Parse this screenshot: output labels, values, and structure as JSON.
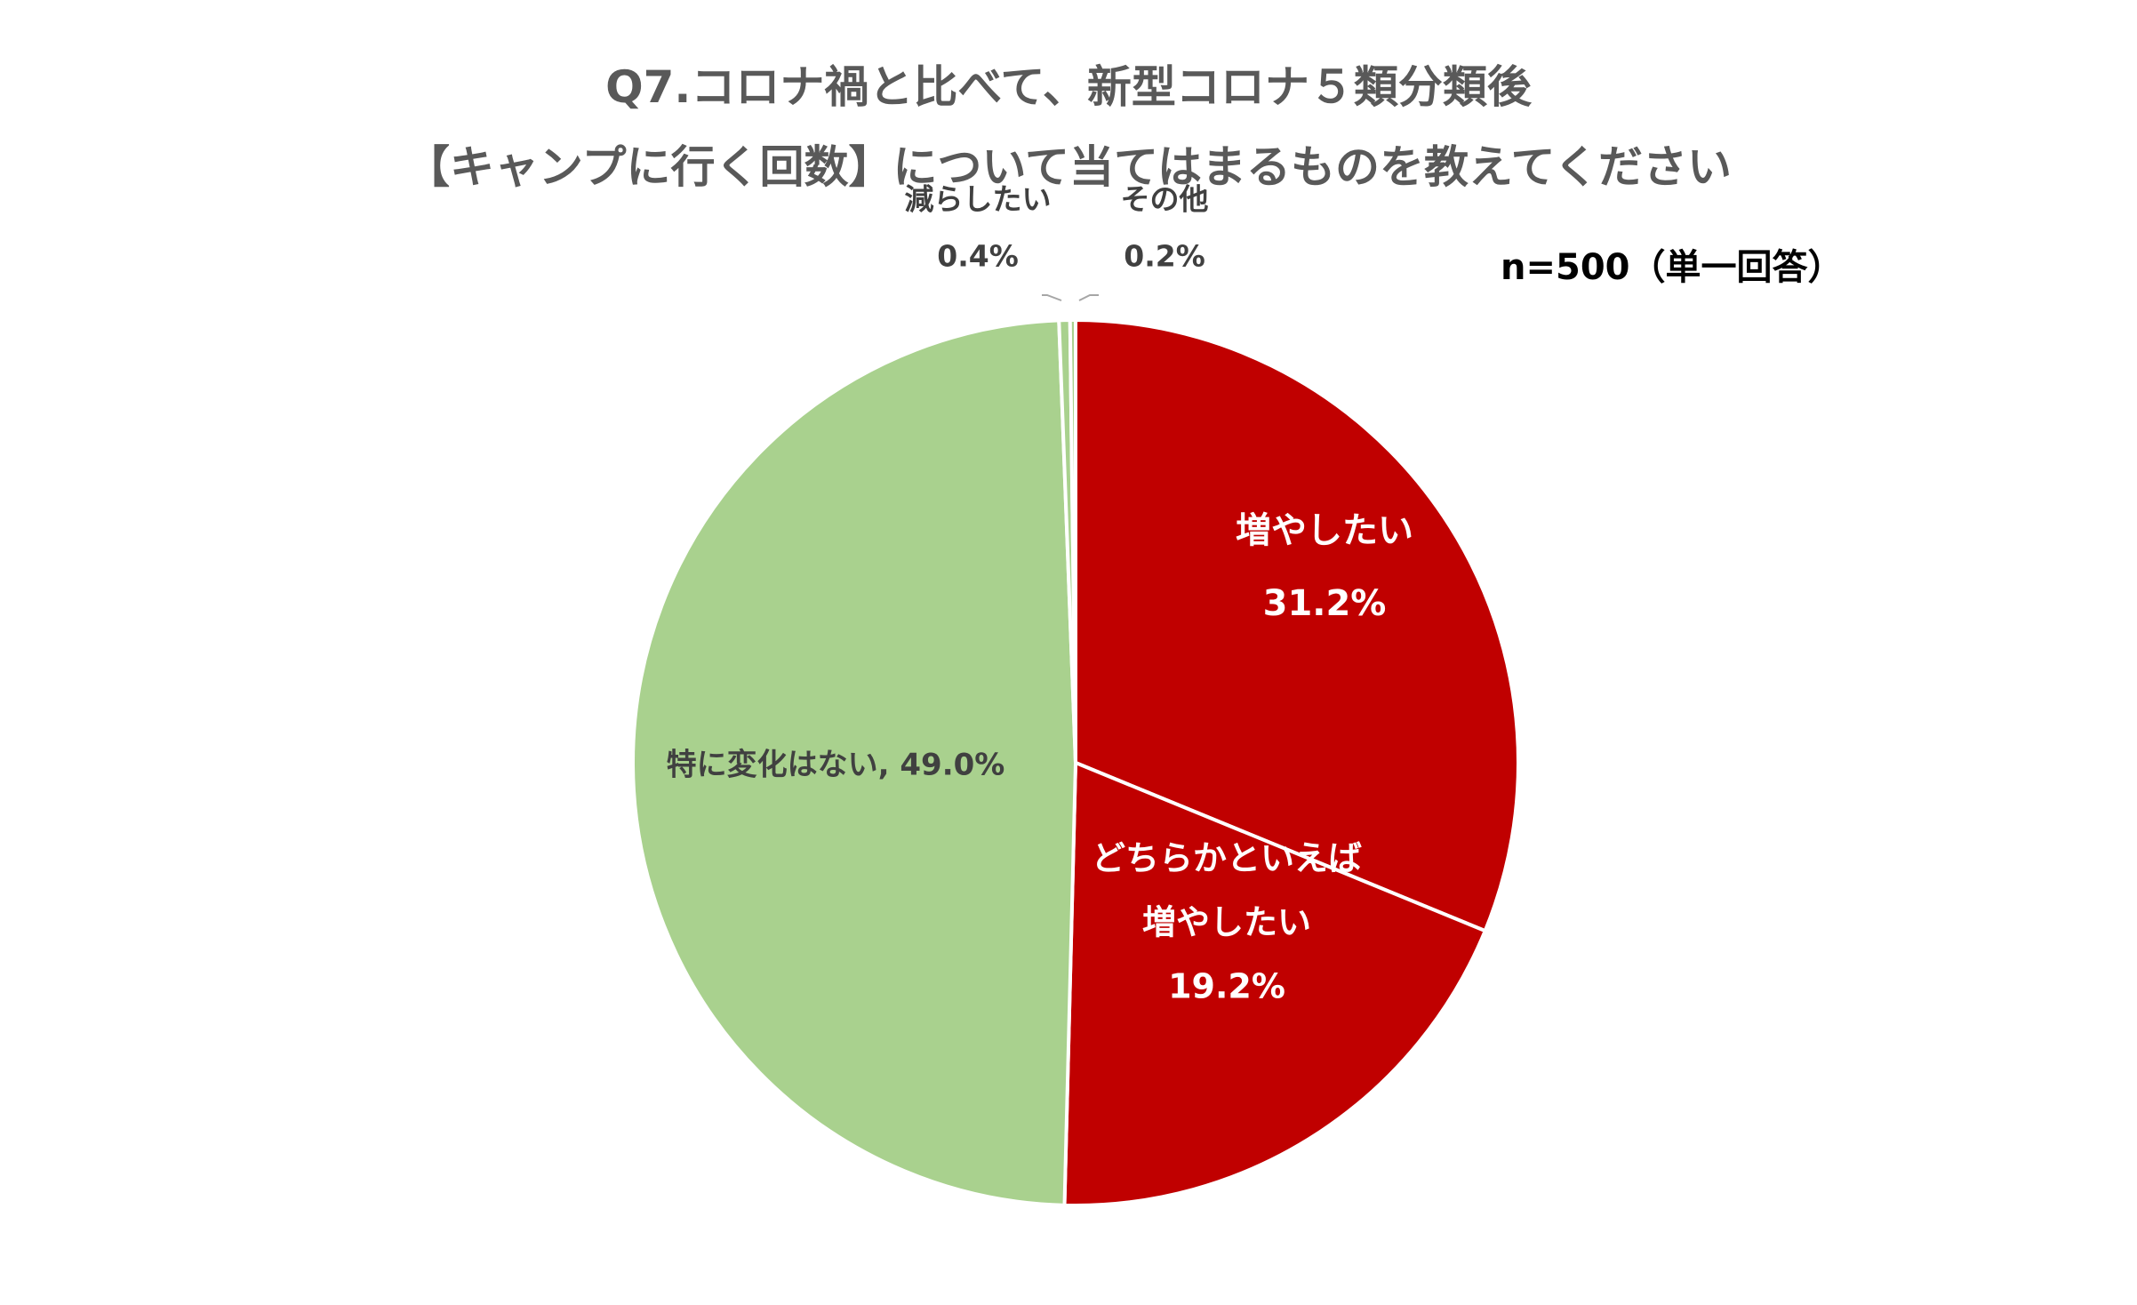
{
  "chart_data": {
    "type": "pie",
    "title": "Q7.コロナ禍と比べて、新型コロナ５類分類後",
    "subtitle": "【キャンプに行く回数】について当てはまるものを教えてください",
    "note": "n=500（単一回答）",
    "slices": [
      {
        "label_lines": [
          "増やしたい"
        ],
        "value": 31.2,
        "value_text": "31.2%",
        "color": "#C00000",
        "label_color": "#FFFFFF"
      },
      {
        "label_lines": [
          "どちらかといえば",
          "増やしたい"
        ],
        "value": 19.2,
        "value_text": "19.2%",
        "color": "#C00000",
        "label_color": "#FFFFFF"
      },
      {
        "label_lines": [
          "特に変化はない, 49.0%"
        ],
        "value": 49.0,
        "value_text": "",
        "color": "#A9D18E",
        "label_color": "#404040"
      },
      {
        "label_lines": [
          "減らしたい"
        ],
        "value": 0.4,
        "value_text": "0.4%",
        "color": "#A9D18E",
        "label_color": "#404040"
      },
      {
        "label_lines": [
          "その他"
        ],
        "value": 0.2,
        "value_text": "0.2%",
        "color": "#A9D18E",
        "label_color": "#404040"
      }
    ]
  }
}
